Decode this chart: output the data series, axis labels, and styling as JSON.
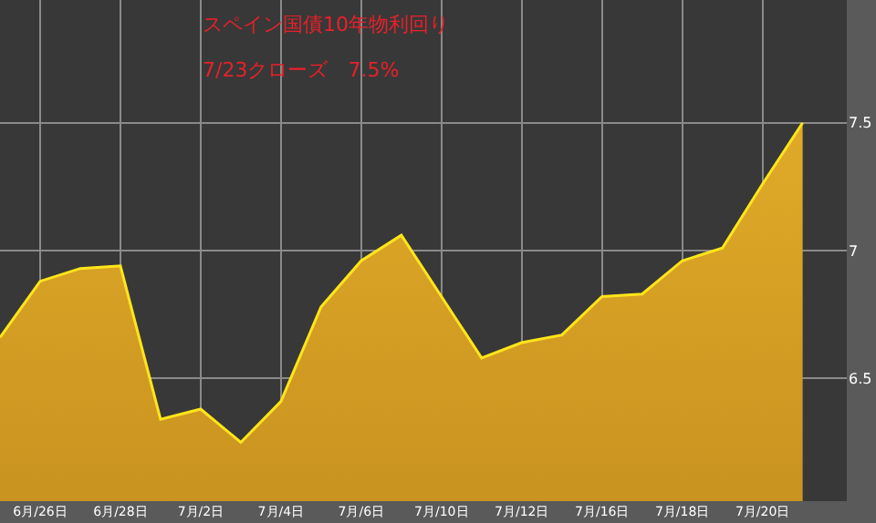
{
  "chart_data": {
    "type": "area",
    "title": "スペイン国債10年物利回り",
    "subtitle": "7/23クローズ　7.5%",
    "categories": [
      null,
      "6月/26日",
      null,
      "6月/28日",
      null,
      "7月/2日",
      null,
      "7月/4日",
      null,
      "7月/6日",
      null,
      "7月/10日",
      null,
      "7月/12日",
      null,
      "7月/16日",
      null,
      "7月/18日",
      null,
      "7月/20日",
      null
    ],
    "series": [
      {
        "color": "#ffe51a",
        "values": [
          6.66,
          6.88,
          6.93,
          6.94,
          6.34,
          6.38,
          6.25,
          6.41,
          6.78,
          6.96,
          7.06,
          6.82,
          6.58,
          6.64,
          6.67,
          6.82,
          6.83,
          6.96,
          7.01,
          7.26,
          7.5
        ]
      }
    ],
    "ylim": [
      6.02,
      7.98
    ],
    "yticks": [
      6.5,
      7,
      7.5
    ],
    "grid": true,
    "legend": false,
    "marker": "none",
    "line_style": "solid"
  }
}
